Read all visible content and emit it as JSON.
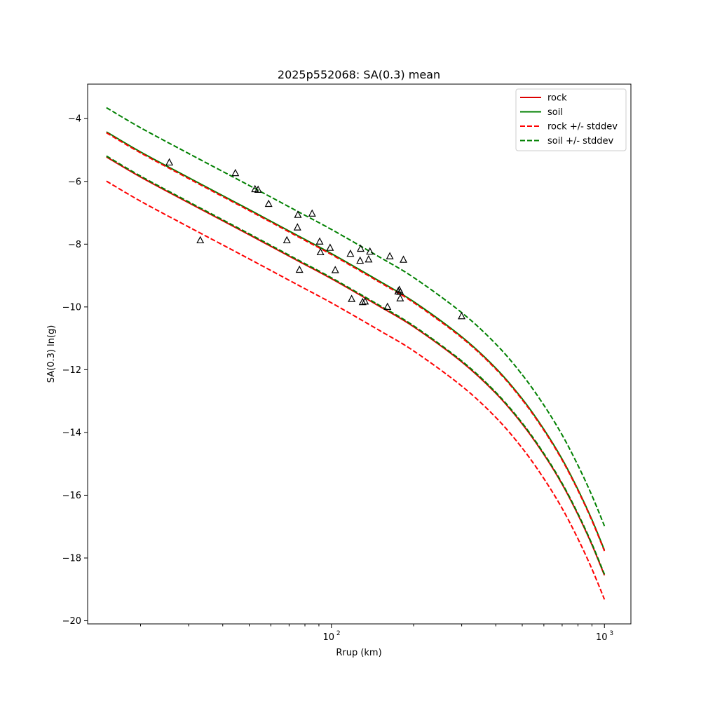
{
  "chart_data": {
    "type": "line",
    "title": "2025p552068: SA(0.3) mean",
    "xlabel": "Rrup (km)",
    "ylabel": "SA(0.3) ln(g)",
    "xscale": "log",
    "xlim": [
      12.8,
      1250
    ],
    "ylim": [
      -20.1,
      -2.9
    ],
    "xticks": [
      {
        "value": 100,
        "label": "10",
        "exp": "2"
      },
      {
        "value": 1000,
        "label": "10",
        "exp": "3"
      }
    ],
    "yticks": [
      {
        "value": -20,
        "label": "−20"
      },
      {
        "value": -18,
        "label": "−18"
      },
      {
        "value": -16,
        "label": "−16"
      },
      {
        "value": -14,
        "label": "−14"
      },
      {
        "value": -12,
        "label": "−12"
      },
      {
        "value": -10,
        "label": "−10"
      },
      {
        "value": -8,
        "label": "−8"
      },
      {
        "value": -6,
        "label": "−6"
      },
      {
        "value": -4,
        "label": "−4"
      }
    ],
    "grid": false,
    "legend_position": "top-right",
    "legend": [
      {
        "label": "rock",
        "color": "#dd0000",
        "style": "solid"
      },
      {
        "label": "soil",
        "color": "#008000",
        "style": "solid"
      },
      {
        "label": "rock +/- stddev",
        "color": "#ff0000",
        "style": "dashed"
      },
      {
        "label": "soil +/- stddev",
        "color": "#008000",
        "style": "dashed"
      }
    ],
    "x": [
      15,
      20,
      30,
      50,
      75,
      100,
      150,
      200,
      300,
      400,
      500,
      600,
      700,
      800,
      900,
      1000
    ],
    "series": [
      {
        "name": "rock",
        "color": "#dd0000",
        "dash": false,
        "values": [
          -5.22,
          -5.86,
          -6.68,
          -7.7,
          -8.52,
          -9.1,
          -9.98,
          -10.63,
          -11.75,
          -12.75,
          -13.73,
          -14.7,
          -15.65,
          -16.62,
          -17.58,
          -18.55
        ]
      },
      {
        "name": "soil",
        "color": "#008000",
        "dash": false,
        "values": [
          -4.42,
          -5.06,
          -5.88,
          -6.9,
          -7.72,
          -8.3,
          -9.18,
          -9.83,
          -10.95,
          -11.95,
          -12.93,
          -13.9,
          -14.85,
          -15.82,
          -16.78,
          -17.75
        ]
      },
      {
        "name": "rock + stddev",
        "color": "#ff0000",
        "dash": true,
        "values": [
          -4.45,
          -5.09,
          -5.91,
          -6.93,
          -7.75,
          -8.33,
          -9.21,
          -9.86,
          -10.98,
          -11.98,
          -12.96,
          -13.93,
          -14.88,
          -15.85,
          -16.81,
          -17.78
        ]
      },
      {
        "name": "rock - stddev",
        "color": "#ff0000",
        "dash": true,
        "values": [
          -5.99,
          -6.63,
          -7.45,
          -8.47,
          -9.29,
          -9.87,
          -10.75,
          -11.4,
          -12.52,
          -13.52,
          -14.5,
          -15.47,
          -16.42,
          -17.39,
          -18.35,
          -19.32
        ]
      },
      {
        "name": "soil + stddev",
        "color": "#008000",
        "dash": true,
        "values": [
          -3.65,
          -4.29,
          -5.11,
          -6.13,
          -6.95,
          -7.53,
          -8.41,
          -9.06,
          -10.18,
          -11.18,
          -12.16,
          -13.13,
          -14.08,
          -15.05,
          -16.01,
          -16.98
        ]
      },
      {
        "name": "soil - stddev",
        "color": "#008000",
        "dash": true,
        "values": [
          -5.19,
          -5.83,
          -6.65,
          -7.67,
          -8.49,
          -9.07,
          -9.95,
          -10.6,
          -11.72,
          -12.72,
          -13.7,
          -14.67,
          -15.62,
          -16.59,
          -17.55,
          -18.52
        ]
      }
    ],
    "observations": [
      [
        25.5,
        -5.4
      ],
      [
        33.1,
        -7.88
      ],
      [
        44.5,
        -5.74
      ],
      [
        52.5,
        -6.25
      ],
      [
        53.9,
        -6.27
      ],
      [
        58.9,
        -6.72
      ],
      [
        68.7,
        -7.88
      ],
      [
        75.4,
        -7.07
      ],
      [
        75.1,
        -7.47
      ],
      [
        76.4,
        -8.82
      ],
      [
        85.0,
        -7.03
      ],
      [
        90.6,
        -7.92
      ],
      [
        91.2,
        -8.26
      ],
      [
        98.9,
        -8.12
      ],
      [
        103.3,
        -8.83
      ],
      [
        117.4,
        -8.31
      ],
      [
        118.6,
        -9.75
      ],
      [
        127.4,
        -8.53
      ],
      [
        128.0,
        -8.15
      ],
      [
        130.1,
        -9.85
      ],
      [
        132.8,
        -9.83
      ],
      [
        136.9,
        -8.49
      ],
      [
        138.4,
        -8.24
      ],
      [
        160.5,
        -10.0
      ],
      [
        163.7,
        -8.39
      ],
      [
        175.6,
        -9.51
      ],
      [
        177.3,
        -9.46
      ],
      [
        178.6,
        -9.52
      ],
      [
        178.6,
        -9.73
      ],
      [
        183.6,
        -8.5
      ],
      [
        299.9,
        -10.3
      ]
    ]
  }
}
